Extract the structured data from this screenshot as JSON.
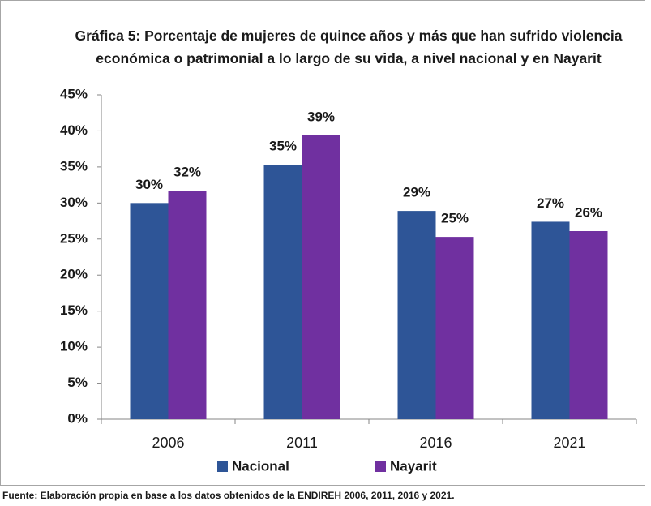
{
  "chart_data": {
    "type": "bar",
    "title": "Gráfica 5: Porcentaje de mujeres de  quince años y más  que han sufrido violencia  económica o patrimonial a lo largo de su vida, a nivel nacional y en Nayarit",
    "categories": [
      "2006",
      "2011",
      "2016",
      "2021"
    ],
    "series": [
      {
        "name": "Nacional",
        "color": "#2e5597",
        "values": [
          30.0,
          35.3,
          28.9,
          27.4
        ],
        "value_labels": [
          "30%",
          "35%",
          "29%",
          "27%"
        ]
      },
      {
        "name": "Nayarit",
        "color": "#7030a0",
        "values": [
          31.7,
          39.4,
          25.3,
          26.1
        ],
        "value_labels": [
          "32%",
          "39%",
          "25%",
          "26%"
        ]
      }
    ],
    "ylim": [
      0,
      45
    ],
    "yticks": [
      {
        "value": 0,
        "label": "0%"
      },
      {
        "value": 5,
        "label": "5%"
      },
      {
        "value": 10,
        "label": "10%"
      },
      {
        "value": 15,
        "label": "15%"
      },
      {
        "value": 20,
        "label": "20%"
      },
      {
        "value": 25,
        "label": "25%"
      },
      {
        "value": 30,
        "label": "30%"
      },
      {
        "value": 35,
        "label": "35%"
      },
      {
        "value": 40,
        "label": "40%"
      },
      {
        "value": 45,
        "label": "45%"
      }
    ],
    "grid": false,
    "legend": "bottom",
    "source": "Fuente: Elaboración propia en base a los datos obtenidos de la ENDIREH 2006, 2011, 2016 y 2021."
  }
}
